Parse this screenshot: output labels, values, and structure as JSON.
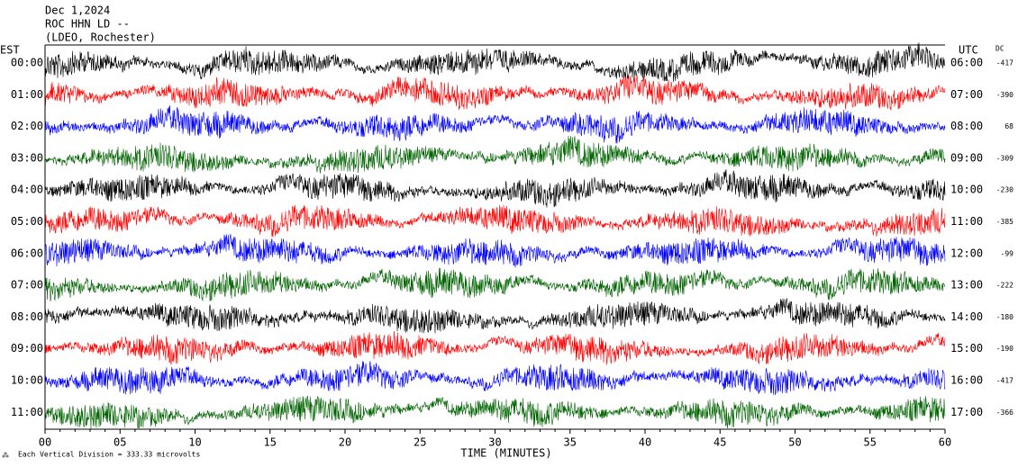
{
  "header": {
    "date": "Dec 1,2024",
    "station": "ROC HHN LD --",
    "location": "(LDEO, Rochester)"
  },
  "left_title": "EST",
  "right_title": "UTC",
  "dc_title": "DC",
  "rows": [
    {
      "est": "00:00",
      "utc": "06:00",
      "dc": "-417"
    },
    {
      "est": "01:00",
      "utc": "07:00",
      "dc": "-390"
    },
    {
      "est": "02:00",
      "utc": "08:00",
      "dc": "68"
    },
    {
      "est": "03:00",
      "utc": "09:00",
      "dc": "-309"
    },
    {
      "est": "04:00",
      "utc": "10:00",
      "dc": "-230"
    },
    {
      "est": "05:00",
      "utc": "11:00",
      "dc": "-385"
    },
    {
      "est": "06:00",
      "utc": "12:00",
      "dc": "-99"
    },
    {
      "est": "07:00",
      "utc": "13:00",
      "dc": "-222"
    },
    {
      "est": "08:00",
      "utc": "14:00",
      "dc": "-180"
    },
    {
      "est": "09:00",
      "utc": "15:00",
      "dc": "-190"
    },
    {
      "est": "10:00",
      "utc": "16:00",
      "dc": "-417"
    },
    {
      "est": "11:00",
      "utc": "17:00",
      "dc": "-366"
    }
  ],
  "x_axis": {
    "ticks": [
      "00",
      "05",
      "10",
      "15",
      "20",
      "25",
      "30",
      "35",
      "40",
      "45",
      "50",
      "55",
      "60"
    ],
    "title": "TIME (MINUTES)"
  },
  "footer": "Each Vertical Division =  333.33 microvolts"
}
